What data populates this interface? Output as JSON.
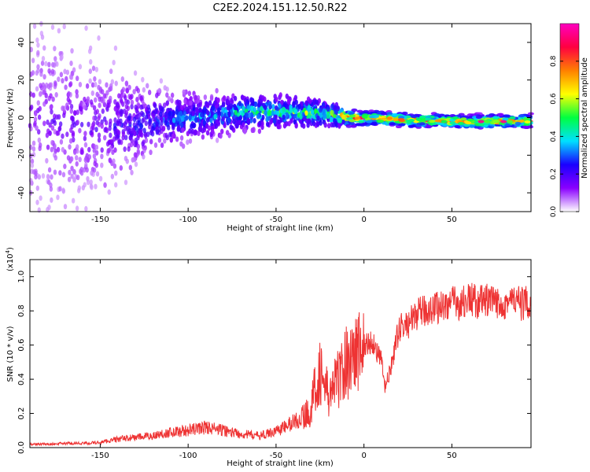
{
  "title": "C2E2.2024.151.12.50.R22",
  "chart_data": [
    {
      "type": "heatmap",
      "xlabel": "Height of straight line (km)",
      "ylabel": "Frequency (Hz)",
      "xlim": [
        -190,
        95
      ],
      "ylim": [
        -50,
        50
      ],
      "xticks": [
        -150,
        -100,
        -50,
        0,
        50
      ],
      "yticks": [
        -40,
        -20,
        0,
        20,
        40
      ],
      "colorbar": {
        "label": "Normalized spectral amplitude",
        "range": [
          0,
          1
        ],
        "ticks": [
          0.0,
          0.2,
          0.4,
          0.6,
          0.8
        ],
        "colormap": [
          "#ffffff",
          "#8a00ff",
          "#1a00ff",
          "#00e0ff",
          "#00ff40",
          "#ffff00",
          "#ff8000",
          "#ff0040",
          "#ff00c0"
        ]
      },
      "signal_track": [
        {
          "x": -190,
          "y": 0,
          "spread": 45,
          "amplitude": 0.15
        },
        {
          "x": -150,
          "y": -5,
          "spread": 30,
          "amplitude": 0.2
        },
        {
          "x": -120,
          "y": -2,
          "spread": 15,
          "amplitude": 0.3
        },
        {
          "x": -100,
          "y": 0,
          "spread": 10,
          "amplitude": 0.35
        },
        {
          "x": -70,
          "y": 3,
          "spread": 8,
          "amplitude": 0.45
        },
        {
          "x": -40,
          "y": 3,
          "spread": 6,
          "amplitude": 0.55
        },
        {
          "x": -20,
          "y": 2,
          "spread": 5,
          "amplitude": 0.6
        },
        {
          "x": -10,
          "y": 0,
          "spread": 3,
          "amplitude": 0.85
        },
        {
          "x": 20,
          "y": -1,
          "spread": 2.5,
          "amplitude": 0.9
        },
        {
          "x": 50,
          "y": -2,
          "spread": 2.5,
          "amplitude": 0.9
        },
        {
          "x": 80,
          "y": -2,
          "spread": 2.5,
          "amplitude": 0.88
        },
        {
          "x": 95,
          "y": -2,
          "spread": 2.5,
          "amplitude": 0.88
        }
      ]
    },
    {
      "type": "line",
      "xlabel": "Height of straight line (km)",
      "ylabel": "SNR (10 * v/v)",
      "y_multiplier_label": "(x10",
      "y_multiplier_exponent": "4",
      "y_multiplier_close": ")",
      "xlim": [
        -190,
        95
      ],
      "ylim": [
        0,
        1.1
      ],
      "xticks": [
        -150,
        -100,
        -50,
        0,
        50
      ],
      "yticks": [
        0.0,
        0.2,
        0.4,
        0.6,
        0.8,
        1.0
      ],
      "color": "#ee3333",
      "series": [
        {
          "x": [
            -190,
            -180,
            -170,
            -160,
            -150,
            -145,
            -140,
            -130,
            -120,
            -110,
            -100,
            -95,
            -90,
            -80,
            -70,
            -60,
            -55,
            -50,
            -45,
            -40,
            -35,
            -30,
            -28,
            -25,
            -22,
            -20,
            -15,
            -10,
            -5,
            0,
            5,
            10,
            12,
            15,
            18,
            20,
            25,
            30,
            35,
            40,
            45,
            50,
            55,
            60,
            65,
            70,
            75,
            80,
            85,
            90,
            95
          ],
          "values": [
            0.02,
            0.02,
            0.025,
            0.025,
            0.03,
            0.04,
            0.05,
            0.06,
            0.07,
            0.09,
            0.1,
            0.11,
            0.12,
            0.1,
            0.08,
            0.07,
            0.08,
            0.1,
            0.12,
            0.15,
            0.18,
            0.22,
            0.35,
            0.45,
            0.35,
            0.3,
            0.4,
            0.5,
            0.55,
            0.6,
            0.62,
            0.5,
            0.35,
            0.45,
            0.6,
            0.7,
            0.72,
            0.78,
            0.8,
            0.82,
            0.83,
            0.85,
            0.84,
            0.87,
            0.85,
            0.86,
            0.84,
            0.85,
            0.86,
            0.84,
            0.85
          ]
        }
      ]
    }
  ]
}
